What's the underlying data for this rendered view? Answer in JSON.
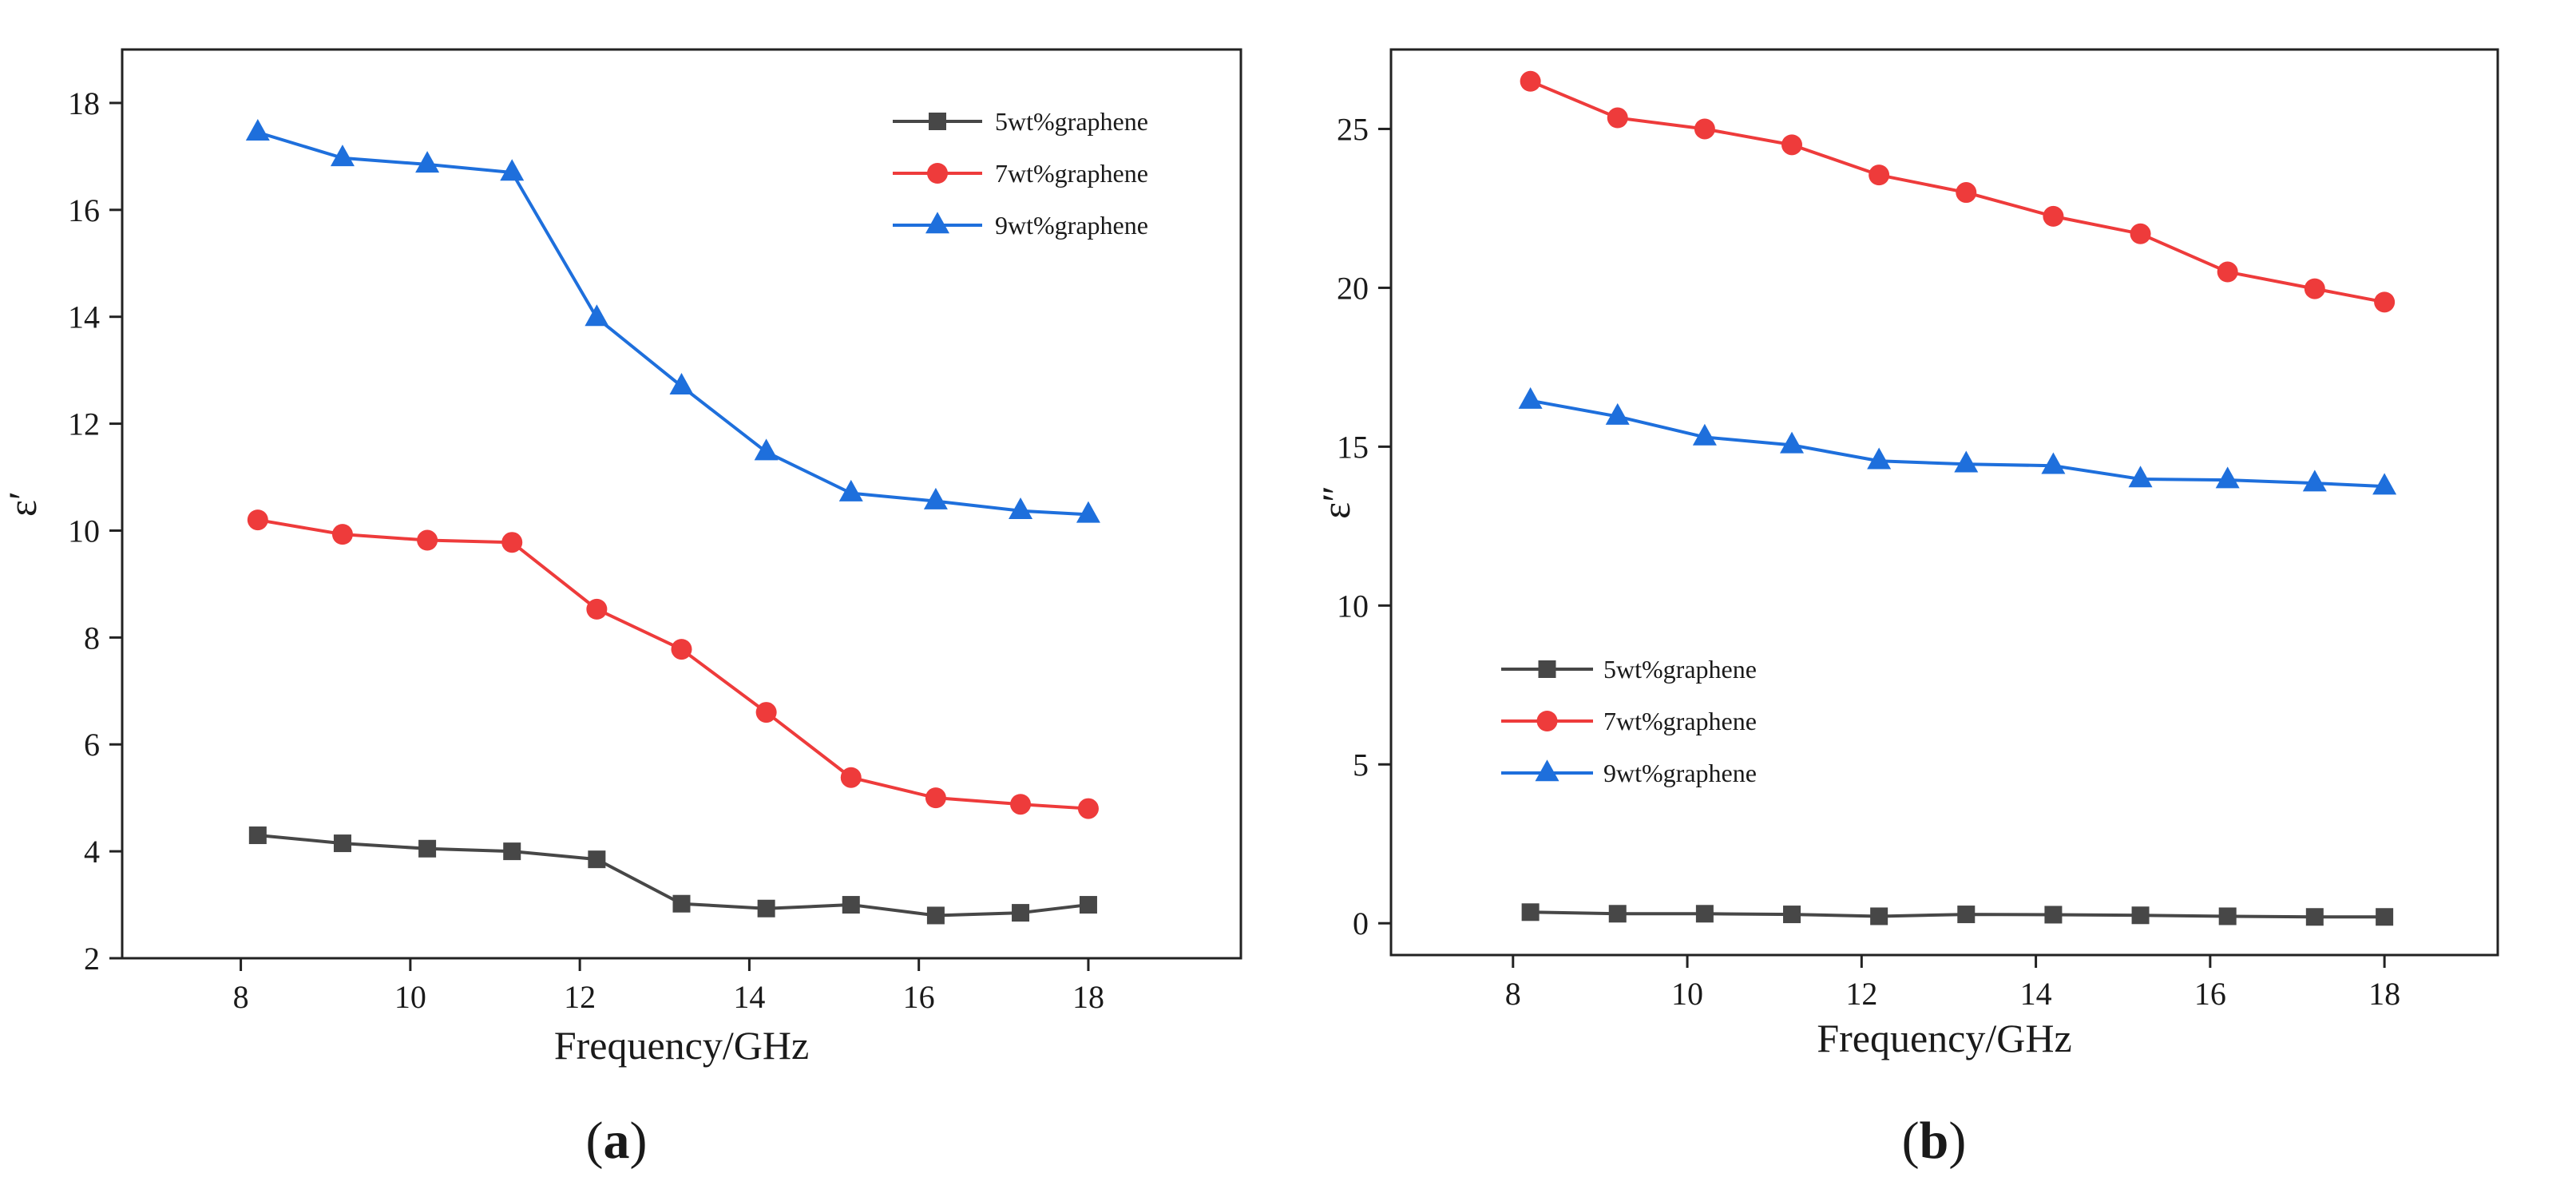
{
  "chart_data": [
    {
      "type": "line",
      "panel_label": "(a)",
      "panel_label_parts": [
        "(",
        "a",
        ")"
      ],
      "xlabel": "Frequency/GHz",
      "ylabel": "ε′",
      "xlim": [
        6.6,
        19.8
      ],
      "ylim": [
        2,
        19
      ],
      "xticks": [
        8,
        10,
        12,
        14,
        16,
        18
      ],
      "yticks": [
        2,
        4,
        6,
        8,
        10,
        12,
        14,
        16,
        18
      ],
      "legend_position": "top-right",
      "x": [
        8.2,
        9.2,
        10.2,
        11.2,
        12.2,
        13.2,
        14.2,
        15.2,
        16.2,
        17.2,
        18.0
      ],
      "series": [
        {
          "name": "5wt%graphene",
          "color": "#474747",
          "marker": "square",
          "values": [
            4.3,
            4.15,
            4.05,
            4.0,
            3.85,
            3.02,
            2.93,
            3.0,
            2.8,
            2.85,
            3.0
          ]
        },
        {
          "name": "7wt%graphene",
          "color": "#ee3b3b",
          "marker": "circle",
          "values": [
            10.2,
            9.93,
            9.82,
            9.78,
            8.53,
            7.78,
            6.6,
            5.38,
            5.0,
            4.88,
            4.8
          ]
        },
        {
          "name": "9wt%graphene",
          "color": "#1e6fdc",
          "marker": "triangle",
          "values": [
            17.45,
            16.97,
            16.85,
            16.7,
            13.98,
            12.7,
            11.47,
            10.7,
            10.55,
            10.37,
            10.3
          ]
        }
      ]
    },
    {
      "type": "line",
      "panel_label": "(b)",
      "panel_label_parts": [
        "(",
        "b",
        ")"
      ],
      "xlabel": "Frequency/GHz",
      "ylabel": "ε″",
      "xlim": [
        6.6,
        19.3
      ],
      "ylim": [
        -1,
        27.5
      ],
      "xticks": [
        8,
        10,
        12,
        14,
        16,
        18
      ],
      "yticks": [
        0,
        5,
        10,
        15,
        20,
        25
      ],
      "legend_position": "center-left",
      "x": [
        8.2,
        9.2,
        10.2,
        11.2,
        12.2,
        13.2,
        14.2,
        15.2,
        16.2,
        17.2,
        18.0
      ],
      "series": [
        {
          "name": "5wt%graphene",
          "color": "#474747",
          "marker": "square",
          "values": [
            0.35,
            0.3,
            0.3,
            0.28,
            0.22,
            0.28,
            0.27,
            0.25,
            0.22,
            0.2,
            0.2
          ]
        },
        {
          "name": "7wt%graphene",
          "color": "#ee3b3b",
          "marker": "circle",
          "values": [
            26.5,
            25.35,
            25.0,
            24.5,
            23.55,
            23.0,
            22.25,
            21.7,
            20.5,
            19.97,
            19.55
          ]
        },
        {
          "name": "9wt%graphene",
          "color": "#1e6fdc",
          "marker": "triangle",
          "values": [
            16.45,
            15.95,
            15.3,
            15.05,
            14.55,
            14.45,
            14.4,
            13.98,
            13.95,
            13.85,
            13.75
          ]
        }
      ]
    }
  ]
}
